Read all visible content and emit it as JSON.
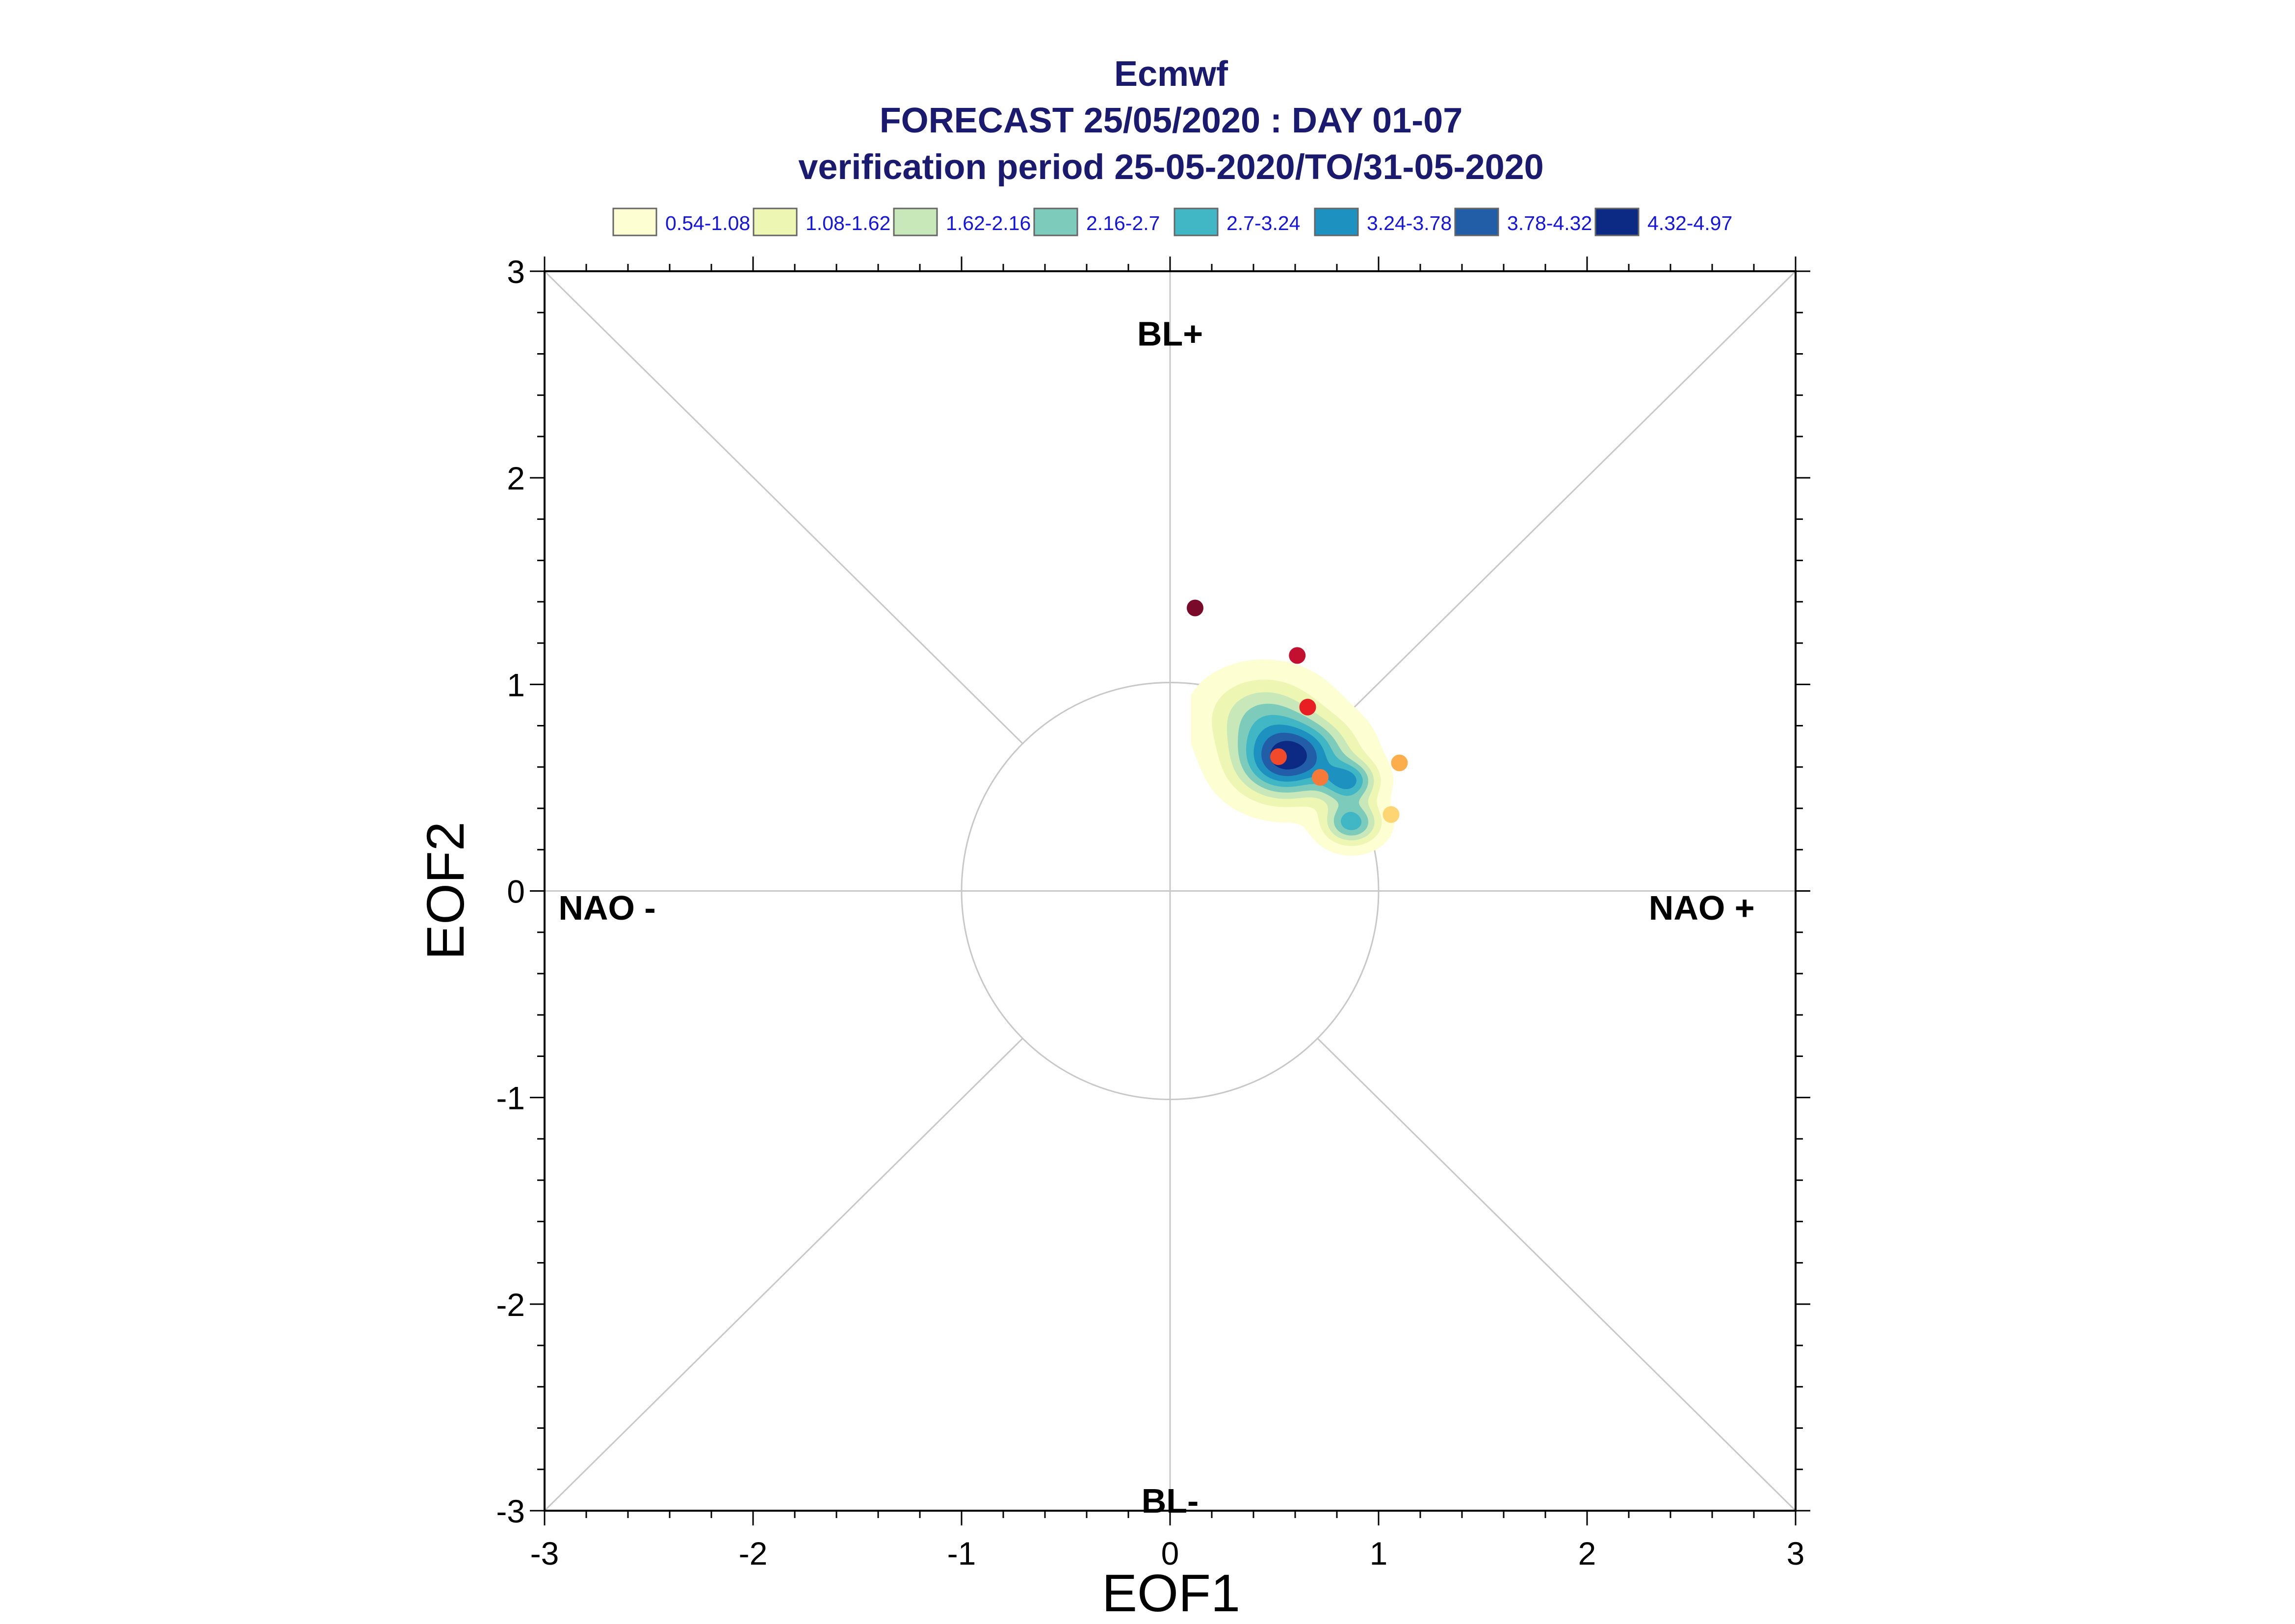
{
  "chart_data": {
    "type": "scatter",
    "title": "Ecmwf",
    "subtitle": "FORECAST 25/05/2020 : DAY 01-07",
    "subtitle2": "verification period 25-05-2020/TO/31-05-2020",
    "xlabel": "EOF1",
    "ylabel": "EOF2",
    "xlim": [
      -3,
      3
    ],
    "ylim": [
      -3,
      3
    ],
    "xticks": [
      "-3",
      "-2",
      "-1",
      "0",
      "1",
      "2",
      "3"
    ],
    "yticks": [
      "-3",
      "-2",
      "-1",
      "0",
      "1",
      "2",
      "3"
    ],
    "regimes": [
      {
        "label": "BL+",
        "x": 0,
        "y": 2.7
      },
      {
        "label": "BL-",
        "x": 0,
        "y": -2.95
      },
      {
        "label": "NAO -",
        "x": -2.7,
        "y": -0.08
      },
      {
        "label": "NAO +",
        "x": 2.55,
        "y": -0.08
      }
    ],
    "reference_circle_radius": 1,
    "legend": {
      "placement": "top",
      "entries": [
        {
          "label": "0.54-1.08",
          "color": "#fdfed2"
        },
        {
          "label": "1.08-1.62",
          "color": "#eef6b4"
        },
        {
          "label": "1.62-2.16",
          "color": "#c9e8b9"
        },
        {
          "label": "2.16-2.7",
          "color": "#7ccbbb"
        },
        {
          "label": "2.7-3.24",
          "color": "#41b6c4"
        },
        {
          "label": "3.24-3.78",
          "color": "#1d91c0"
        },
        {
          "label": "3.78-4.32",
          "color": "#225ea8"
        },
        {
          "label": "4.32-4.97",
          "color": "#0c2a84"
        }
      ]
    },
    "density_blobs": [
      {
        "x": 0.55,
        "y": 0.62,
        "sx": 0.16,
        "sy": 0.12,
        "w": 1.0
      },
      {
        "x": 0.45,
        "y": 0.85,
        "sx": 0.18,
        "sy": 0.13,
        "w": 0.5
      },
      {
        "x": 0.86,
        "y": 0.53,
        "sx": 0.09,
        "sy": 0.07,
        "w": 0.75
      },
      {
        "x": 0.87,
        "y": 0.33,
        "sx": 0.09,
        "sy": 0.07,
        "w": 0.75
      },
      {
        "x": 0.7,
        "y": 0.7,
        "sx": 0.15,
        "sy": 0.1,
        "w": 0.3
      }
    ],
    "points": [
      {
        "x": 0.12,
        "y": 1.37,
        "color": "#7a0a2a"
      },
      {
        "x": 0.61,
        "y": 1.14,
        "color": "#c41030"
      },
      {
        "x": 0.66,
        "y": 0.89,
        "color": "#e81e22"
      },
      {
        "x": 0.52,
        "y": 0.65,
        "color": "#f04a2a"
      },
      {
        "x": 0.72,
        "y": 0.55,
        "color": "#f57a3a"
      },
      {
        "x": 1.1,
        "y": 0.62,
        "color": "#fcae4c"
      },
      {
        "x": 1.06,
        "y": 0.37,
        "color": "#fdd572"
      }
    ]
  }
}
